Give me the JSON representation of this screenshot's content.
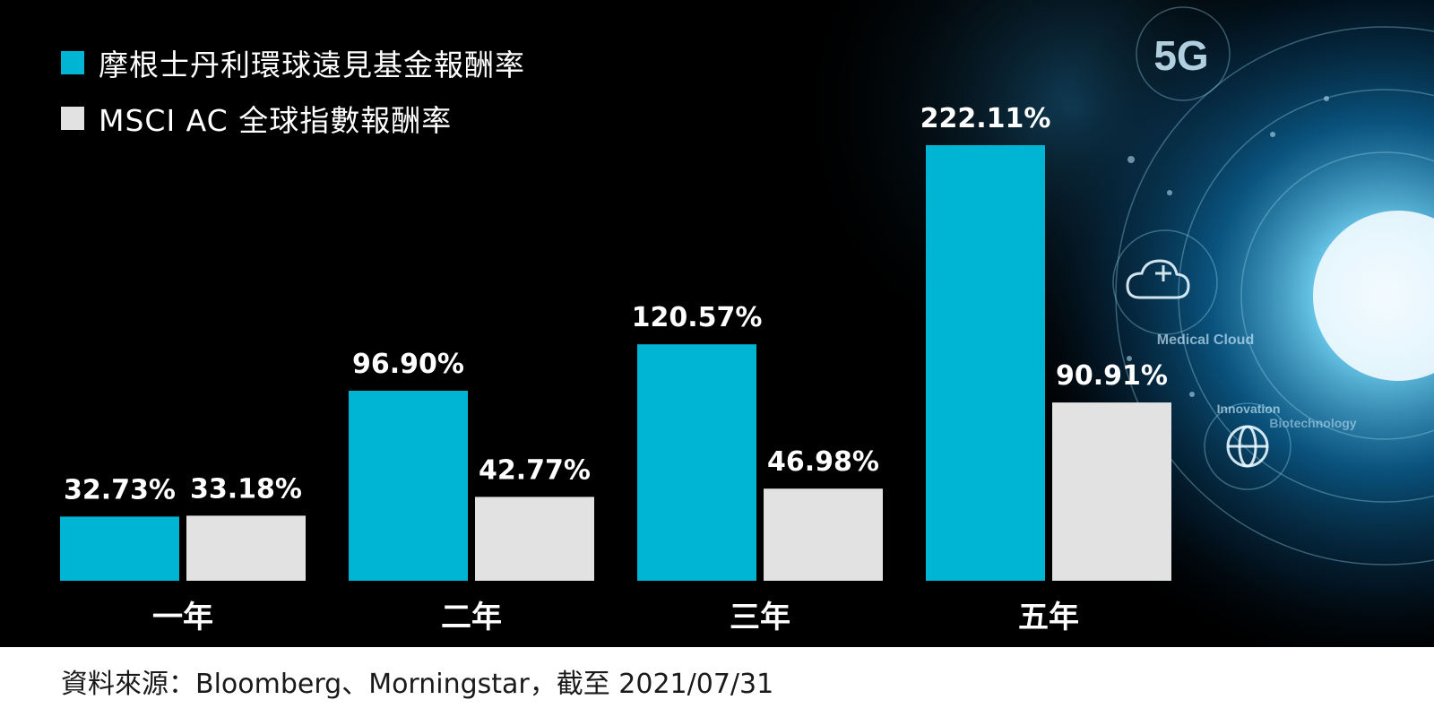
{
  "chart_data": {
    "type": "bar",
    "categories": [
      "一年",
      "二年",
      "三年",
      "五年"
    ],
    "series": [
      {
        "name": "摩根士丹利環球遠見基金報酬率",
        "color": "#00b4d4",
        "values": [
          32.73,
          96.9,
          120.57,
          222.11
        ],
        "labels": [
          "32.73%",
          "96.90%",
          "120.57%",
          "222.11%"
        ]
      },
      {
        "name": "MSCI AC 全球指數報酬率",
        "color": "#e2e2e2",
        "values": [
          33.18,
          42.77,
          46.98,
          90.91
        ],
        "labels": [
          "33.18%",
          "42.77%",
          "46.98%",
          "90.91%"
        ]
      }
    ],
    "unit": "%",
    "ylim": [
      0,
      222.11
    ],
    "grid": false,
    "legend_position": "top-left"
  },
  "background": {
    "labels": [
      "5G",
      "Medical Cloud",
      "Innovation",
      "Biotechnology"
    ]
  },
  "source": "資料來源：Bloomberg、Morningstar，截至 2021/07/31"
}
